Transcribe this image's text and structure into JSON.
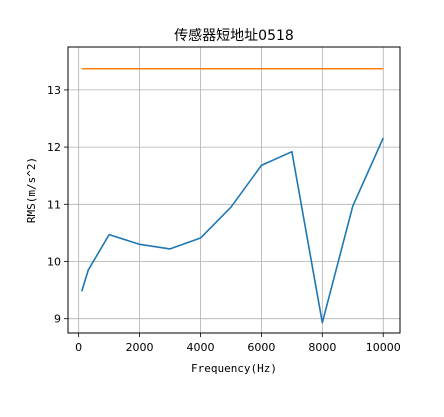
{
  "chart_data": {
    "type": "line",
    "title": "传感器短地址0518",
    "xlabel": "Frequency(Hz)",
    "ylabel": "RMS(m/s^2)",
    "xlim": [
      -350,
      10550
    ],
    "ylim": [
      8.75,
      13.75
    ],
    "grid": true,
    "x_ticks": [
      0,
      2000,
      4000,
      6000,
      8000,
      10000
    ],
    "y_ticks": [
      9,
      10,
      11,
      12,
      13
    ],
    "series": [
      {
        "color": "#1f77b4",
        "x": [
          100,
          315,
          1000,
          2000,
          3000,
          4000,
          5000,
          6000,
          7000,
          8000,
          9000,
          10000
        ],
        "y": [
          9.48,
          9.85,
          10.47,
          10.3,
          10.22,
          10.41,
          10.95,
          11.68,
          11.92,
          8.93,
          10.97,
          12.16
        ]
      },
      {
        "color": "#ff7f0e",
        "x": [
          100,
          10000
        ],
        "y": [
          13.37,
          13.37
        ]
      }
    ]
  }
}
